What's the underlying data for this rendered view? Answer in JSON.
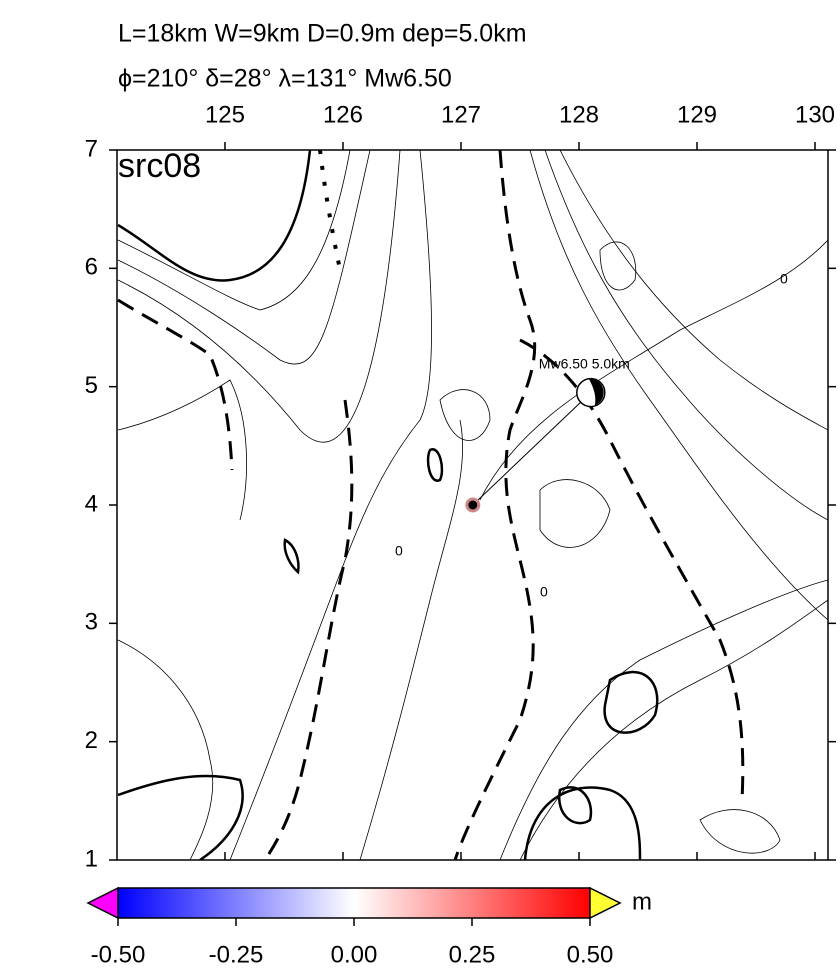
{
  "title_lines": [
    "L=18km W=9km D=0.9m dep=5.0km",
    "ϕ=210° δ=28° λ=131° Mw6.50"
  ],
  "map": {
    "label": "src08",
    "xlim": [
      124.085,
      130.11
    ],
    "ylim": [
      1,
      7
    ],
    "xticks": [
      125,
      126,
      127,
      128,
      129,
      130
    ],
    "yticks": [
      1,
      2,
      3,
      4,
      5,
      6,
      7
    ],
    "contour_labels": [
      "0",
      "0",
      "0"
    ]
  },
  "event": {
    "label": "Mw6.50  5.0km",
    "epicenter": [
      127.1,
      4.0
    ],
    "mechanism": [
      128.1,
      4.95
    ]
  },
  "colorbar": {
    "unit": "m",
    "lim": [
      -0.5,
      0.5
    ],
    "ticks": [
      {
        "value": -0.5,
        "label": "-0.50"
      },
      {
        "value": -0.25,
        "label": "-0.25"
      },
      {
        "value": 0,
        "label": "0.00"
      },
      {
        "value": 0.25,
        "label": "0.25"
      },
      {
        "value": 0.5,
        "label": "0.50"
      }
    ]
  }
}
